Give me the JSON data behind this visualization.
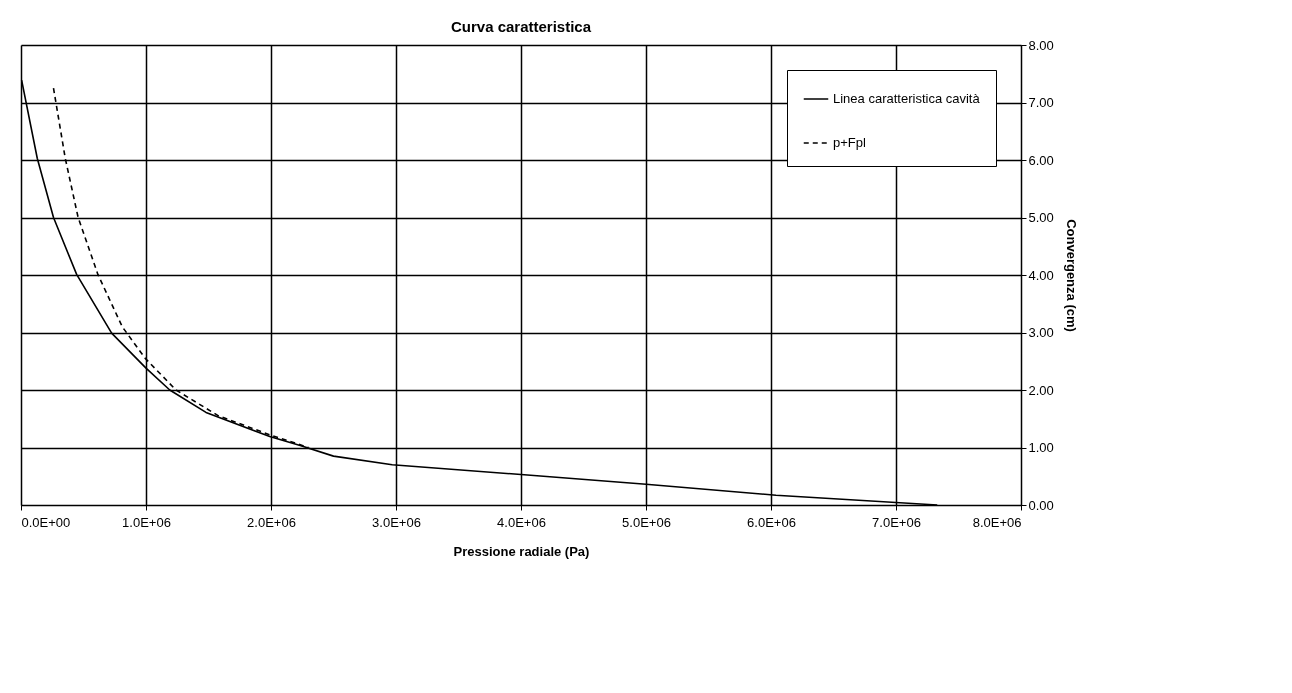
{
  "chart_data": {
    "type": "line",
    "title": "Curva caratteristica",
    "xlabel": "Pressione radiale (Pa)",
    "ylabel": "Convergenza (cm)",
    "xlim": [
      0,
      8000000
    ],
    "ylim": [
      0,
      8
    ],
    "xticks": [
      {
        "value": 0,
        "label": "0.0E+00"
      },
      {
        "value": 1000000,
        "label": "1.0E+06"
      },
      {
        "value": 2000000,
        "label": "2.0E+06"
      },
      {
        "value": 3000000,
        "label": "3.0E+06"
      },
      {
        "value": 4000000,
        "label": "4.0E+06"
      },
      {
        "value": 5000000,
        "label": "5.0E+06"
      },
      {
        "value": 6000000,
        "label": "6.0E+06"
      },
      {
        "value": 7000000,
        "label": "7.0E+06"
      },
      {
        "value": 8000000,
        "label": "8.0E+06"
      }
    ],
    "yticks": [
      {
        "value": 0,
        "label": "0.00"
      },
      {
        "value": 1,
        "label": "1.00"
      },
      {
        "value": 2,
        "label": "2.00"
      },
      {
        "value": 3,
        "label": "3.00"
      },
      {
        "value": 4,
        "label": "4.00"
      },
      {
        "value": 5,
        "label": "5.00"
      },
      {
        "value": 6,
        "label": "6.00"
      },
      {
        "value": 7,
        "label": "7.00"
      },
      {
        "value": 8,
        "label": "8.00"
      }
    ],
    "grid": true,
    "legend": "top right",
    "series": [
      {
        "name": "Linea caratteristica cavità",
        "color": "#000000",
        "line_style": "solid",
        "x": [
          5000,
          130000,
          260000,
          445000,
          725000,
          1000000,
          1190000,
          1480000,
          1990000,
          2240000,
          2500000,
          2970000,
          4000000,
          5000000,
          6040000,
          7330000
        ],
        "values": [
          7.39,
          6.03,
          5.0,
          4.01,
          2.99,
          2.38,
          2.0,
          1.61,
          1.19,
          1.03,
          0.85,
          0.7,
          0.53,
          0.36,
          0.17,
          0.0
        ]
      },
      {
        "name": "p+Fpl",
        "color": "#000000",
        "line_style": "dashed",
        "x": [
          260000,
          354000,
          457000,
          615000,
          810000,
          994000,
          1240000,
          1580000,
          1990000,
          2300000
        ],
        "values": [
          7.25,
          6.03,
          5.0,
          4.01,
          3.1,
          2.55,
          2.0,
          1.55,
          1.22,
          1.0
        ]
      }
    ]
  }
}
